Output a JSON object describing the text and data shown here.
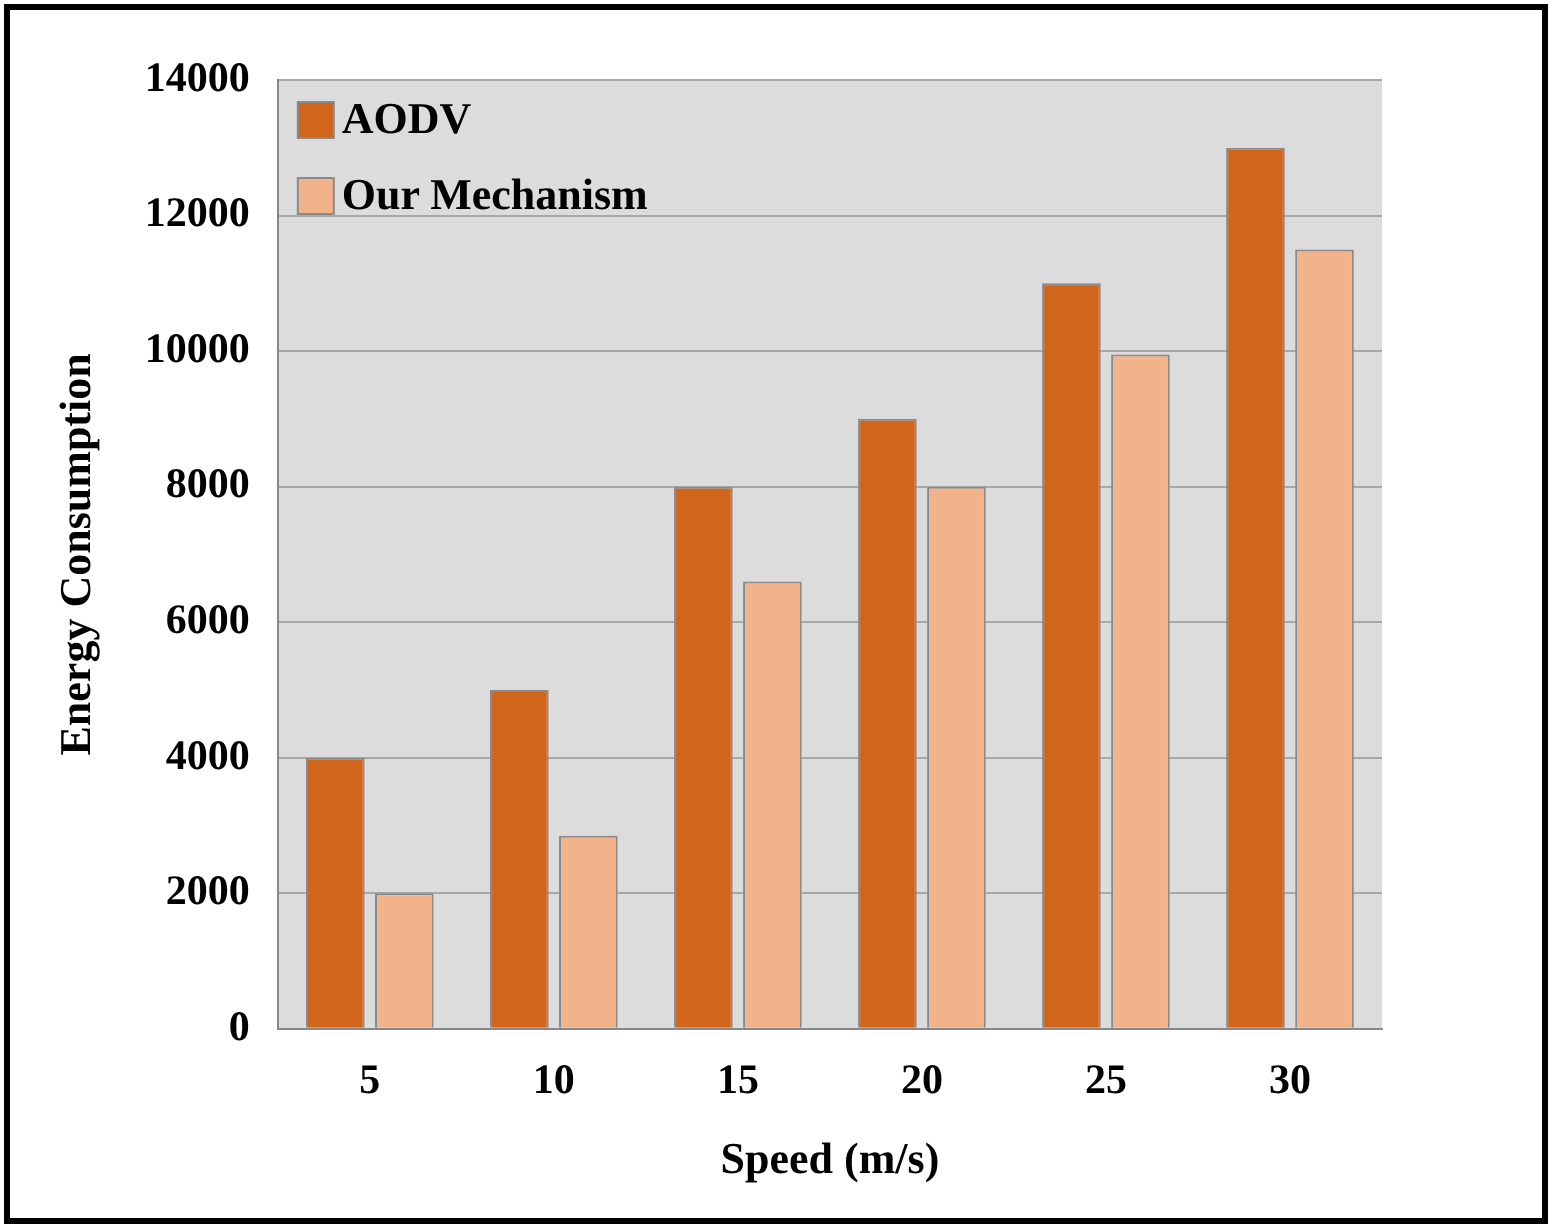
{
  "chart_data": {
    "type": "bar",
    "xlabel": "Speed (m/s)",
    "ylabel": "Energy Consumption",
    "categories": [
      "5",
      "10",
      "15",
      "20",
      "25",
      "30"
    ],
    "series": [
      {
        "name": "AODV",
        "color": "#d2651c",
        "values": [
          4000,
          5000,
          8000,
          9000,
          11000,
          13000
        ]
      },
      {
        "name": "Our Mechanism",
        "color": "#f2b38a",
        "values": [
          2000,
          2850,
          6600,
          8000,
          9950,
          11500
        ]
      }
    ],
    "ylim": [
      0,
      14000
    ],
    "yticks": [
      0,
      2000,
      4000,
      6000,
      8000,
      10000,
      12000,
      14000
    ],
    "grid": "y",
    "legend": "top left"
  }
}
